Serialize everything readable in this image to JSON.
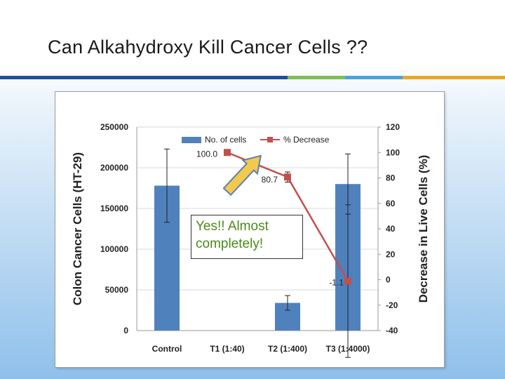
{
  "slide": {
    "title": "Can Alkahydroxy Kill Cancer Cells ??",
    "bar_colors": [
      "#1f4e9a",
      "#7cbf57",
      "#4aa3d8",
      "#e8a92a"
    ]
  },
  "callout": {
    "line1": "Yes!! Almost",
    "line2": "completely!",
    "text_color": "#4a8a1a",
    "arrow_color": "#f2c94c"
  },
  "chart_data": {
    "type": "bar",
    "categories": [
      "Control",
      "T1 (1:40)",
      "T2 (1:400)",
      "T3 (1:4000)"
    ],
    "ylabel": "Colon Cancer Cells (HT-29)",
    "y2label": "Decrease in Live Cells (%)",
    "ylim": [
      0,
      250000
    ],
    "y_ticks": [
      "0",
      "50000",
      "100000",
      "150000",
      "200000",
      "250000"
    ],
    "y2lim": [
      -40,
      120
    ],
    "y2_ticks": [
      "-40",
      "-20",
      "0",
      "20",
      "40",
      "60",
      "80",
      "100",
      "120"
    ],
    "grid": true,
    "legend_position": "top-center",
    "series": [
      {
        "name": "No. of cells",
        "type": "bar",
        "axis": "left",
        "color": "#4f81bd",
        "values": [
          178000,
          null,
          34000,
          180000
        ],
        "error": [
          45000,
          null,
          9000,
          37000
        ]
      },
      {
        "name": "% Decrease",
        "type": "line",
        "axis": "right",
        "color": "#c0504d",
        "x": [
          "T1 (1:40)",
          "T2 (1:400)",
          "T3 (1:4000)"
        ],
        "values": [
          100.0,
          80.7,
          -1.1
        ],
        "error": [
          null,
          4,
          60
        ],
        "labels": [
          "100.0",
          "80.7",
          "-1.1"
        ]
      }
    ]
  }
}
